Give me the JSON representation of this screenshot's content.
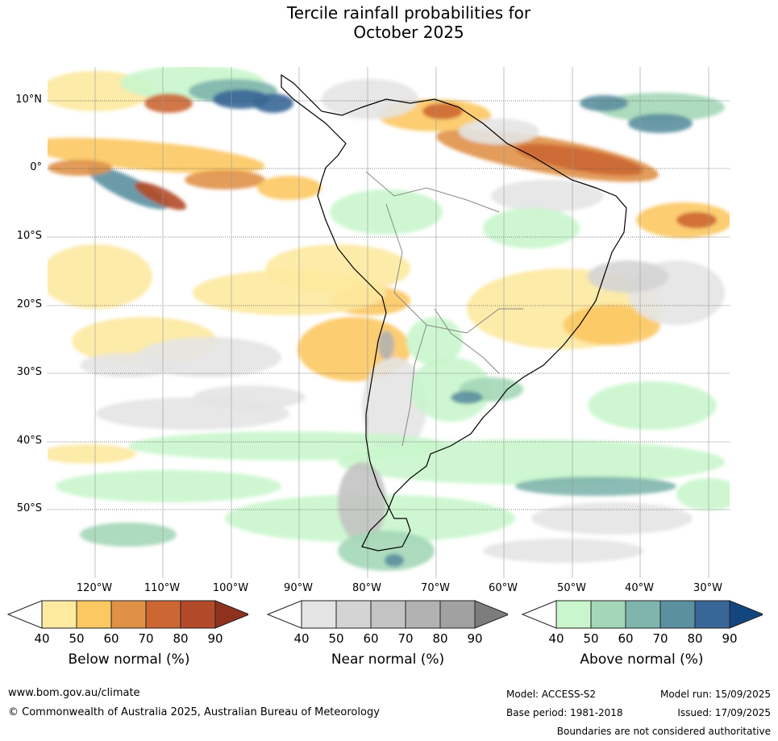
{
  "title_line1": "Tercile rainfall probabilities for",
  "title_line2": "October 2025",
  "map": {
    "region": "South America",
    "lat_labels": [
      "10°N",
      "0°",
      "10°S",
      "20°S",
      "30°S",
      "40°S",
      "50°S"
    ],
    "lon_labels": [
      "120°W",
      "110°W",
      "100°W",
      "90°W",
      "80°W",
      "70°W",
      "60°W",
      "50°W",
      "40°W",
      "30°W"
    ]
  },
  "colorbars": [
    {
      "title": "Below normal (%)",
      "ticks": [
        "40",
        "50",
        "60",
        "70",
        "80",
        "90"
      ],
      "colors": [
        "#fde9a0",
        "#fcc862",
        "#e09148",
        "#cc6733",
        "#b24a29",
        "#8f321d"
      ]
    },
    {
      "title": "Near normal (%)",
      "ticks": [
        "40",
        "50",
        "60",
        "70",
        "80",
        "90"
      ],
      "colors": [
        "#e4e4e4",
        "#d4d4d4",
        "#c3c3c3",
        "#b2b2b2",
        "#a1a1a1",
        "#7d7d7d"
      ]
    },
    {
      "title": "Above normal (%)",
      "ticks": [
        "40",
        "50",
        "60",
        "70",
        "80",
        "90"
      ],
      "colors": [
        "#c9f6cc",
        "#a4d7b7",
        "#7fb5ad",
        "#5b90a0",
        "#386797",
        "#13467f"
      ]
    }
  ],
  "footer": {
    "website": "www.bom.gov.au/climate",
    "copyright": "© Commonwealth of Australia 2025, Australian Bureau of Meteorology",
    "model": "Model: ACCESS-S2",
    "base_period": "Base period: 1981-2018",
    "model_run": "Model run: 15/09/2025",
    "issued": "Issued: 17/09/2025",
    "disclaimer": "Boundaries are not considered authoritative"
  }
}
